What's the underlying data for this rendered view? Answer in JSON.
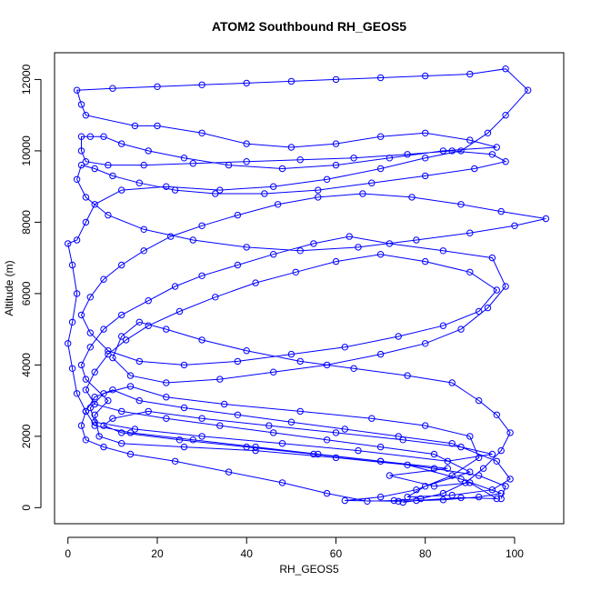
{
  "chart_data": {
    "type": "line",
    "title": "ATOM2 Southbound RH_GEOS5",
    "xlabel": "RH_GEOS5",
    "ylabel": "Altitude (m)",
    "xlim": [
      -3,
      111
    ],
    "ylim": [
      -450,
      12750
    ],
    "xticks": [
      0,
      20,
      40,
      60,
      80,
      100
    ],
    "yticks": [
      0,
      2000,
      4000,
      6000,
      8000,
      10000,
      12000
    ],
    "grid": false,
    "marker": "open-circle",
    "series": [
      {
        "color": "#0000ff",
        "points": [
          [
            75,
            150
          ],
          [
            78,
            200
          ],
          [
            88,
            280
          ],
          [
            96,
            250
          ],
          [
            90,
            700
          ],
          [
            82,
            600
          ],
          [
            72,
            900
          ],
          [
            85,
            1100
          ],
          [
            70,
            1300
          ],
          [
            55,
            1500
          ],
          [
            40,
            1700
          ],
          [
            25,
            1900
          ],
          [
            12,
            2100
          ],
          [
            8,
            2300
          ],
          [
            10,
            2500
          ],
          [
            18,
            2700
          ],
          [
            30,
            2500
          ],
          [
            45,
            2300
          ],
          [
            60,
            2100
          ],
          [
            75,
            1900
          ],
          [
            88,
            1700
          ],
          [
            95,
            1500
          ],
          [
            85,
            1300
          ],
          [
            65,
            1600
          ],
          [
            48,
            1800
          ],
          [
            30,
            2000
          ],
          [
            15,
            2200
          ],
          [
            6,
            2400
          ],
          [
            5,
            2800
          ],
          [
            8,
            3200
          ],
          [
            14,
            3400
          ],
          [
            22,
            3100
          ],
          [
            35,
            2900
          ],
          [
            52,
            2700
          ],
          [
            68,
            2500
          ],
          [
            80,
            2300
          ],
          [
            90,
            2000
          ],
          [
            92,
            1400
          ],
          [
            86,
            900
          ],
          [
            78,
            500
          ],
          [
            70,
            300
          ],
          [
            62,
            200
          ],
          [
            74,
            180
          ],
          [
            84,
            220
          ],
          [
            92,
            300
          ],
          [
            97,
            400
          ],
          [
            88,
            800
          ],
          [
            76,
            1200
          ],
          [
            60,
            1400
          ],
          [
            42,
            1600
          ],
          [
            26,
            1700
          ],
          [
            12,
            1800
          ],
          [
            7,
            2000
          ],
          [
            6,
            2600
          ],
          [
            9,
            3000
          ],
          [
            4,
            3600
          ],
          [
            3,
            4000
          ],
          [
            5,
            4500
          ],
          [
            8,
            5000
          ],
          [
            12,
            5400
          ],
          [
            18,
            5800
          ],
          [
            24,
            6200
          ],
          [
            30,
            6500
          ],
          [
            38,
            6800
          ],
          [
            46,
            7100
          ],
          [
            55,
            7400
          ],
          [
            63,
            7600
          ],
          [
            72,
            7400
          ],
          [
            84,
            7200
          ],
          [
            95,
            7000
          ],
          [
            98,
            6200
          ],
          [
            94,
            5600
          ],
          [
            88,
            5000
          ],
          [
            80,
            4600
          ],
          [
            70,
            4300
          ],
          [
            58,
            4000
          ],
          [
            46,
            3800
          ],
          [
            34,
            3600
          ],
          [
            22,
            3500
          ],
          [
            14,
            3700
          ],
          [
            10,
            4200
          ],
          [
            12,
            4800
          ],
          [
            16,
            5200
          ],
          [
            22,
            5000
          ],
          [
            30,
            4700
          ],
          [
            40,
            4400
          ],
          [
            52,
            4100
          ],
          [
            64,
            3900
          ],
          [
            76,
            3700
          ],
          [
            86,
            3500
          ],
          [
            92,
            3000
          ],
          [
            96,
            2600
          ],
          [
            99,
            2100
          ],
          [
            97,
            1600
          ],
          [
            93,
            1100
          ],
          [
            89,
            700
          ],
          [
            84,
            400
          ],
          [
            79,
            250
          ],
          [
            73,
            200
          ],
          [
            67,
            180
          ],
          [
            58,
            400
          ],
          [
            48,
            700
          ],
          [
            36,
            1000
          ],
          [
            24,
            1300
          ],
          [
            14,
            1500
          ],
          [
            8,
            1700
          ],
          [
            4,
            1900
          ],
          [
            3,
            2300
          ],
          [
            4,
            2700
          ],
          [
            6,
            3100
          ],
          [
            10,
            3300
          ],
          [
            16,
            3000
          ],
          [
            26,
            2800
          ],
          [
            38,
            2600
          ],
          [
            50,
            2400
          ],
          [
            62,
            2200
          ],
          [
            74,
            2000
          ],
          [
            86,
            1800
          ],
          [
            96,
            1300
          ],
          [
            99,
            800
          ],
          [
            95,
            500
          ],
          [
            86,
            350
          ],
          [
            76,
            300
          ],
          [
            80,
            600
          ],
          [
            90,
            1000
          ],
          [
            82,
            1500
          ],
          [
            70,
            1700
          ],
          [
            58,
            1900
          ],
          [
            46,
            2100
          ],
          [
            34,
            2300
          ],
          [
            22,
            2500
          ],
          [
            12,
            2700
          ],
          [
            6,
            2900
          ],
          [
            4,
            3300
          ],
          [
            6,
            3800
          ],
          [
            9,
            4300
          ],
          [
            13,
            4700
          ],
          [
            18,
            5100
          ],
          [
            25,
            5500
          ],
          [
            33,
            5900
          ],
          [
            42,
            6300
          ],
          [
            51,
            6600
          ],
          [
            60,
            6900
          ],
          [
            70,
            7100
          ],
          [
            80,
            6900
          ],
          [
            90,
            6600
          ],
          [
            96,
            6100
          ],
          [
            92,
            5500
          ],
          [
            84,
            5100
          ],
          [
            74,
            4800
          ],
          [
            62,
            4500
          ],
          [
            50,
            4300
          ],
          [
            38,
            4100
          ],
          [
            26,
            4000
          ],
          [
            16,
            4100
          ],
          [
            9,
            4400
          ],
          [
            5,
            4900
          ],
          [
            3,
            5400
          ],
          [
            5,
            5900
          ],
          [
            8,
            6400
          ],
          [
            12,
            6800
          ],
          [
            17,
            7200
          ],
          [
            23,
            7600
          ],
          [
            30,
            7900
          ],
          [
            38,
            8200
          ],
          [
            47,
            8500
          ],
          [
            56,
            8700
          ],
          [
            66,
            8800
          ],
          [
            77,
            8700
          ],
          [
            88,
            8500
          ],
          [
            97,
            8300
          ],
          [
            107,
            8100
          ],
          [
            100,
            7900
          ],
          [
            90,
            7700
          ],
          [
            78,
            7500
          ],
          [
            65,
            7300
          ],
          [
            52,
            7200
          ],
          [
            40,
            7300
          ],
          [
            28,
            7500
          ],
          [
            17,
            7800
          ],
          [
            9,
            8200
          ],
          [
            4,
            8700
          ],
          [
            2,
            9200
          ],
          [
            3,
            9600
          ],
          [
            6,
            9500
          ],
          [
            10,
            9300
          ],
          [
            16,
            9100
          ],
          [
            24,
            8900
          ],
          [
            33,
            8800
          ],
          [
            44,
            8800
          ],
          [
            56,
            8900
          ],
          [
            68,
            9100
          ],
          [
            80,
            9300
          ],
          [
            91,
            9500
          ],
          [
            98,
            9700
          ],
          [
            95,
            9900
          ],
          [
            86,
            10000
          ],
          [
            76,
            9900
          ],
          [
            64,
            9800
          ],
          [
            52,
            9750
          ],
          [
            40,
            9700
          ],
          [
            28,
            9650
          ],
          [
            17,
            9600
          ],
          [
            9,
            9600
          ],
          [
            4,
            9700
          ],
          [
            3,
            10000
          ],
          [
            3,
            10400
          ],
          [
            5,
            10400
          ],
          [
            8,
            10400
          ],
          [
            12,
            10200
          ],
          [
            18,
            10000
          ],
          [
            26,
            9800
          ],
          [
            36,
            9600
          ],
          [
            48,
            9500
          ],
          [
            60,
            9600
          ],
          [
            72,
            9800
          ],
          [
            84,
            10000
          ],
          [
            96,
            10100
          ],
          [
            90,
            10300
          ],
          [
            80,
            10500
          ],
          [
            70,
            10400
          ],
          [
            60,
            10200
          ],
          [
            50,
            10100
          ],
          [
            40,
            10200
          ],
          [
            30,
            10500
          ],
          [
            20,
            10700
          ],
          [
            15,
            10700
          ],
          [
            4,
            11000
          ],
          [
            3,
            11300
          ],
          [
            2,
            11700
          ],
          [
            10,
            11750
          ],
          [
            20,
            11800
          ],
          [
            30,
            11850
          ],
          [
            40,
            11900
          ],
          [
            50,
            11950
          ],
          [
            60,
            12000
          ],
          [
            70,
            12050
          ],
          [
            80,
            12100
          ],
          [
            90,
            12150
          ],
          [
            98,
            12300
          ],
          [
            103,
            11700
          ],
          [
            98,
            11000
          ],
          [
            94,
            10500
          ],
          [
            88,
            10000
          ],
          [
            80,
            9800
          ],
          [
            70,
            9500
          ],
          [
            58,
            9200
          ],
          [
            46,
            9000
          ],
          [
            34,
            8900
          ],
          [
            22,
            9000
          ],
          [
            12,
            8900
          ],
          [
            6,
            8500
          ],
          [
            4,
            8000
          ],
          [
            2,
            7500
          ],
          [
            0,
            7400
          ],
          [
            1,
            6800
          ],
          [
            2,
            6000
          ],
          [
            1,
            5200
          ],
          [
            0,
            4600
          ],
          [
            1,
            3900
          ],
          [
            2,
            3200
          ],
          [
            4,
            2700
          ],
          [
            6,
            2300
          ],
          [
            14,
            2100
          ],
          [
            28,
            1900
          ],
          [
            42,
            1700
          ],
          [
            56,
            1500
          ],
          [
            70,
            1300
          ],
          [
            82,
            1100
          ],
          [
            92,
            900
          ],
          [
            98,
            600
          ],
          [
            97,
            250
          ]
        ]
      }
    ]
  }
}
